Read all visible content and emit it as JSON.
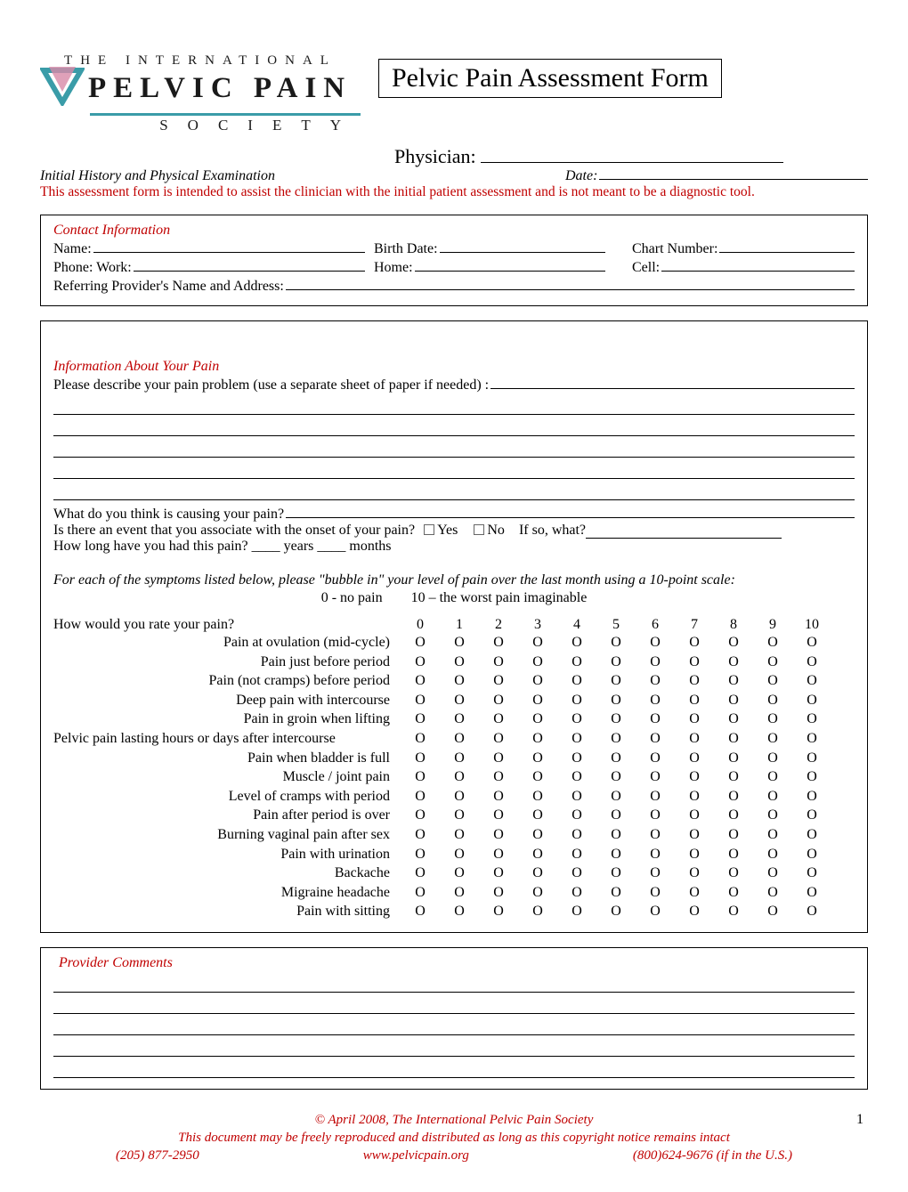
{
  "logo": {
    "top": "THE INTERNATIONAL",
    "main": "PELVIC PAIN",
    "bottom": "SOCIETY",
    "accent_color": "#3a9ca8",
    "pink_color": "#d88aa8"
  },
  "title": "Pelvic Pain Assessment Form",
  "physician_label": "Physician:",
  "subtitle": "Initial History and Physical Examination",
  "date_label": "Date:",
  "intro_text": "This assessment form is intended to assist the clinician with the initial patient assessment and is not meant to be a diagnostic tool.",
  "contact": {
    "heading": "Contact Information",
    "name_label": "Name:",
    "birth_label": "Birth Date:",
    "chart_label": "Chart Number:",
    "phone_work_label": "Phone:  Work:",
    "home_label": "Home:",
    "cell_label": "Cell:",
    "referring_label": "Referring Provider's Name and Address:"
  },
  "pain_info": {
    "heading": "Information About Your Pain",
    "describe_label": "Please describe your pain problem (use a separate sheet of paper if needed) :",
    "cause_label": "What do you think is causing your pain?",
    "event_label": "Is there an event that you associate with the onset of your pain?",
    "yes": "Yes",
    "no": "No",
    "ifso": "If so, what?",
    "howlong_label": "How long have you had this pain? ____ years     ____ months",
    "instructions": "For each of the symptoms listed below, please \"bubble in\" your level of pain over the last month using a 10-point scale:",
    "legend_zero": "0 - no pain",
    "legend_ten": "10 – the worst pain imaginable",
    "rate_header": "How would you rate your pain?",
    "scale": [
      "0",
      "1",
      "2",
      "3",
      "4",
      "5",
      "6",
      "7",
      "8",
      "9",
      "10"
    ],
    "symptoms": [
      "Pain at ovulation (mid-cycle)",
      "Pain just before period",
      "Pain (not cramps) before period",
      "Deep pain with intercourse",
      "Pain in groin when lifting",
      "Pelvic pain lasting hours or days after intercourse",
      "Pain when bladder is full",
      "Muscle / joint pain",
      "Level of cramps with period",
      "Pain after period is over",
      "Burning vaginal pain after sex",
      "Pain with urination",
      "Backache",
      "Migraine headache",
      "Pain with sitting"
    ]
  },
  "provider_comments_heading": "Provider Comments",
  "footer": {
    "copyright": "© April 2008, The International Pelvic Pain Society",
    "notice": "This document may be freely reproduced and distributed as long as this copyright notice remains intact",
    "phone1": "(205) 877-2950",
    "website": "www.pelvicpain.org",
    "phone2": "(800)624-9676 (if in the U.S.)"
  },
  "page_number": "1",
  "colors": {
    "red": "#c00000",
    "black": "#000000"
  }
}
